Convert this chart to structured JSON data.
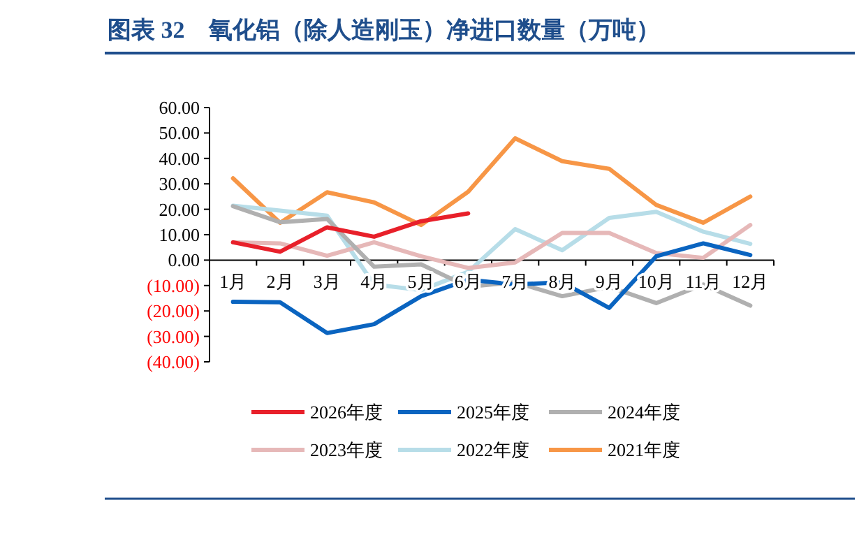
{
  "chart_data": {
    "type": "line",
    "title": "图表 32　氧化铝（除人造刚玉）净进口数量（万吨）",
    "categories": [
      "1月",
      "2月",
      "3月",
      "4月",
      "5月",
      "6月",
      "7月",
      "8月",
      "9月",
      "10月",
      "11月",
      "12月"
    ],
    "ylim": [
      -40,
      60
    ],
    "yticks": [
      {
        "value": 60,
        "label": "60.00"
      },
      {
        "value": 50,
        "label": "50.00"
      },
      {
        "value": 40,
        "label": "40.00"
      },
      {
        "value": 30,
        "label": "30.00"
      },
      {
        "value": 20,
        "label": "20.00"
      },
      {
        "value": 10,
        "label": "10.00"
      },
      {
        "value": 0,
        "label": "0.00"
      },
      {
        "value": -10,
        "label": "(10.00)"
      },
      {
        "value": -20,
        "label": "(20.00)"
      },
      {
        "value": -30,
        "label": "(30.00)"
      },
      {
        "value": -40,
        "label": "(40.00)"
      }
    ],
    "grid": false,
    "legend": "bottom",
    "marker": "none",
    "line_style": "solid",
    "series": [
      {
        "name": "2026年度",
        "color": "#e8202a",
        "values": [
          7.0,
          3.3,
          12.9,
          9.2,
          15.3,
          18.4,
          null,
          null,
          null,
          null,
          null,
          null
        ]
      },
      {
        "name": "2025年度",
        "color": "#0a64c0",
        "values": [
          -16.4,
          -16.6,
          -28.7,
          -25.2,
          -14.2,
          -7.7,
          -9.6,
          -8.7,
          -18.8,
          1.5,
          6.6,
          2.0
        ]
      },
      {
        "name": "2024年度",
        "color": "#b0b0b0",
        "values": [
          21.2,
          14.9,
          16.2,
          -2.6,
          -1.7,
          -10.5,
          -8.7,
          -14.2,
          -10.5,
          -16.9,
          -9.6,
          -17.9
        ]
      },
      {
        "name": "2023年度",
        "color": "#e6b8b8",
        "values": [
          7.0,
          6.6,
          1.7,
          7.0,
          1.5,
          -3.1,
          -0.9,
          10.7,
          10.7,
          2.8,
          0.9,
          13.8
        ]
      },
      {
        "name": "2022年度",
        "color": "#b7dde8",
        "values": [
          21.4,
          19.5,
          17.5,
          -9.6,
          -11.8,
          -4.6,
          12.2,
          3.9,
          16.6,
          19.0,
          11.2,
          6.4
        ]
      },
      {
        "name": "2021年度",
        "color": "#f79646",
        "values": [
          32.2,
          14.7,
          26.7,
          22.7,
          13.8,
          26.9,
          47.9,
          38.9,
          35.9,
          21.7,
          14.7,
          25.0
        ]
      }
    ]
  }
}
